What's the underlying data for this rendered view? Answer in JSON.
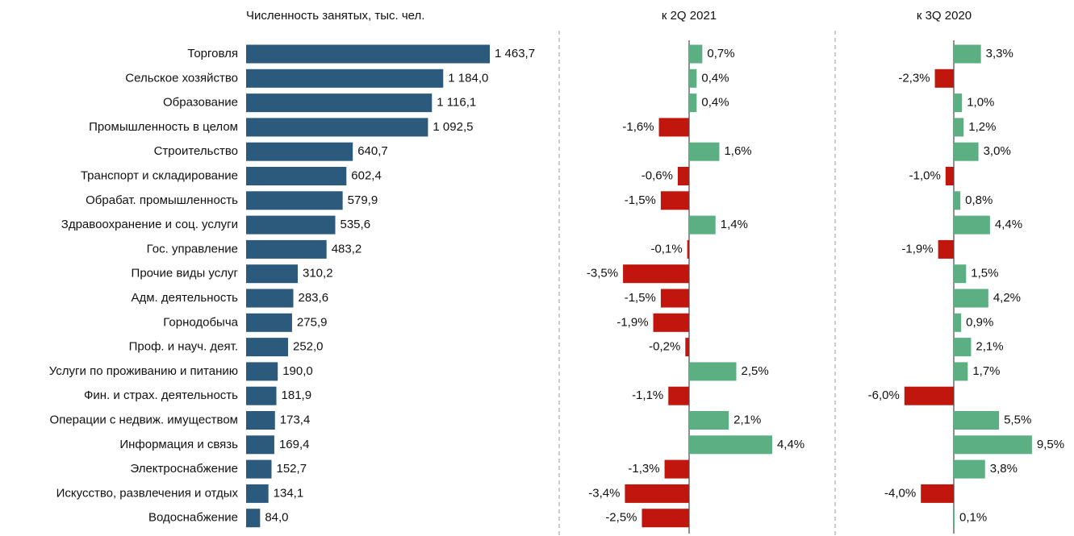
{
  "chart_data": [
    {
      "type": "hbar",
      "title": "Численность занятых, тыс. чел.",
      "color": "#2b5a7d",
      "categories": [
        "Торговля",
        "Сельское хозяйство",
        "Образование",
        "Промышленность в целом",
        "Строительство",
        "Транспорт и складирование",
        "Обрабат. промышленность",
        "Здравоохранение и соц. услуги",
        "Гос. управление",
        "Прочие виды услуг",
        "Адм. деятельность",
        "Горнодобыча",
        "Проф. и науч. деят.",
        "Услуги по проживанию и питанию",
        "Фин. и страх. деятельность",
        "Операции с недвиж. имуществом",
        "Информация и связь",
        "Электроснабжение",
        "Искусство, развлечения и отдых",
        "Водоснабжение"
      ],
      "values": [
        1463.7,
        1184.0,
        1116.1,
        1092.5,
        640.7,
        602.4,
        579.9,
        535.6,
        483.2,
        310.2,
        283.6,
        275.9,
        252.0,
        190.0,
        181.9,
        173.4,
        169.4,
        152.7,
        134.1,
        84.0
      ],
      "value_labels": [
        "1 463,7",
        "1 184,0",
        "1 116,1",
        "1 092,5",
        "640,7",
        "602,4",
        "579,9",
        "535,6",
        "483,2",
        "310,2",
        "283,6",
        "275,9",
        "252,0",
        "190,0",
        "181,9",
        "173,4",
        "169,4",
        "152,7",
        "134,1",
        "84,0"
      ]
    },
    {
      "type": "diverging",
      "title": "к 2Q 2021",
      "positive_color": "#5baf82",
      "negative_color": "#c0160d",
      "values": [
        0.7,
        0.4,
        0.4,
        -1.6,
        1.6,
        -0.6,
        -1.5,
        1.4,
        -0.1,
        -3.5,
        -1.5,
        -1.9,
        -0.2,
        2.5,
        -1.1,
        2.1,
        4.4,
        -1.3,
        -3.4,
        -2.5
      ],
      "value_labels": [
        "0,7%",
        "0,4%",
        "0,4%",
        "-1,6%",
        "1,6%",
        "-0,6%",
        "-1,5%",
        "1,4%",
        "-0,1%",
        "-3,5%",
        "-1,5%",
        "-1,9%",
        "-0,2%",
        "2,5%",
        "-1,1%",
        "2,1%",
        "4,4%",
        "-1,3%",
        "-3,4%",
        "-2,5%"
      ]
    },
    {
      "type": "diverging",
      "title": "к 3Q 2020",
      "positive_color": "#5baf82",
      "negative_color": "#c0160d",
      "values": [
        3.3,
        -2.3,
        1.0,
        1.2,
        3.0,
        -1.0,
        0.8,
        4.4,
        -1.9,
        1.5,
        4.2,
        0.9,
        2.1,
        1.7,
        -6.0,
        5.5,
        9.5,
        3.8,
        -4.0,
        0.1
      ],
      "value_labels": [
        "3,3%",
        "-2,3%",
        "1,0%",
        "1,2%",
        "3,0%",
        "-1,0%",
        "0,8%",
        "4,4%",
        "-1,9%",
        "1,5%",
        "4,2%",
        "0,9%",
        "2,1%",
        "1,7%",
        "-6,0%",
        "5,5%",
        "9,5%",
        "3,8%",
        "-4,0%",
        "0,1%"
      ]
    }
  ]
}
